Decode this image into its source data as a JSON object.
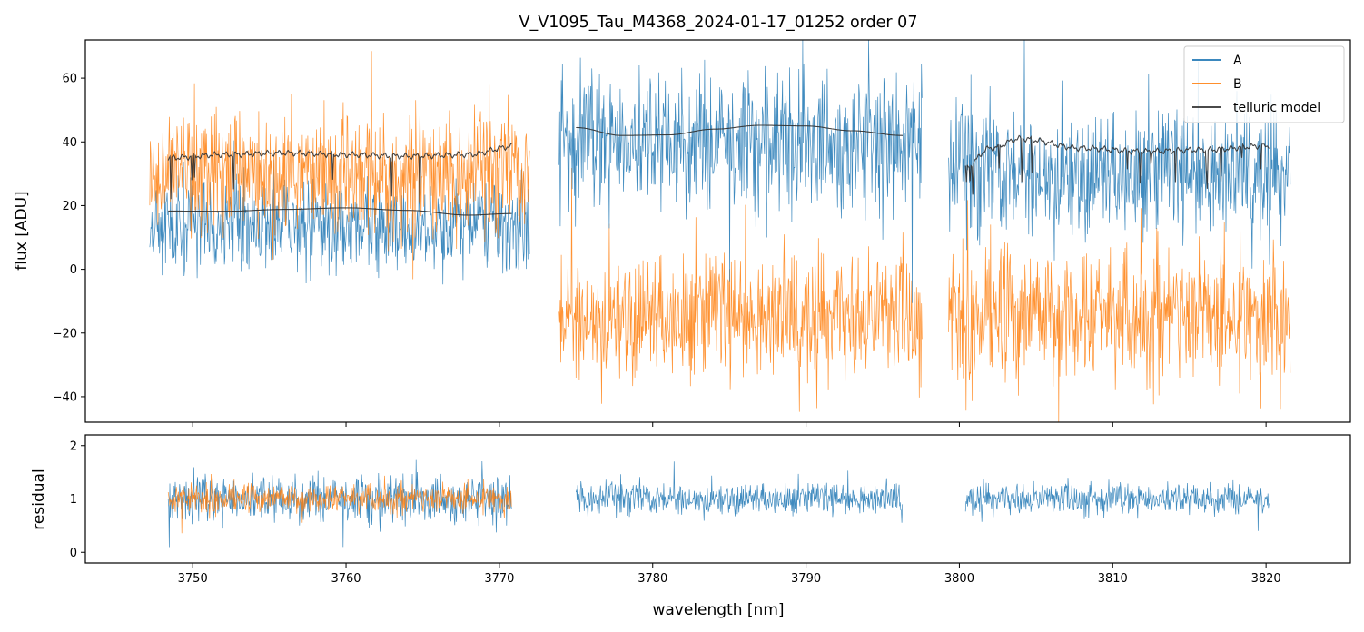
{
  "chart_data": [
    {
      "type": "line",
      "panel": "spectrum",
      "title": "V_V1095_Tau_M4368_2024-01-17_01252  order 07",
      "xlabel": "",
      "ylabel": "flux [ADU]",
      "xlim": [
        3743.0,
        3825.5
      ],
      "ylim": [
        -48,
        72
      ],
      "yticks": [
        -40,
        -20,
        0,
        20,
        40,
        60
      ],
      "ytick_labels": [
        "−40",
        "−20",
        "0",
        "20",
        "40",
        "60"
      ],
      "legend_position": "top-right",
      "series": [
        {
          "name": "A",
          "color": "#1f77b4",
          "segments": [
            {
              "x_start": 3747.2,
              "x_end": 3772.0,
              "center": 14,
              "noise": 14
            },
            {
              "x_start": 3773.9,
              "x_end": 3797.6,
              "center": 40,
              "noise": 22
            },
            {
              "x_start": 3799.3,
              "x_end": 3821.6,
              "center": 30,
              "noise": 20
            }
          ]
        },
        {
          "name": "B",
          "color": "#ff7f0e",
          "segments": [
            {
              "x_start": 3747.2,
              "x_end": 3772.0,
              "center": 30,
              "noise": 18
            },
            {
              "x_start": 3773.9,
              "x_end": 3797.6,
              "center": -15,
              "noise": 20
            },
            {
              "x_start": 3799.3,
              "x_end": 3821.6,
              "center": -15,
              "noise": 22
            }
          ]
        },
        {
          "name": "telluric model",
          "color": "#303030",
          "segments": [
            {
              "x": [
                3748.4,
                3752,
                3756,
                3760,
                3764,
                3768,
                3770.8
              ],
              "y": [
                35,
                36,
                36.5,
                36,
                35.5,
                36,
                38.5
              ]
            },
            {
              "x": [
                3748.4,
                3752,
                3756,
                3760,
                3764,
                3768,
                3770.8
              ],
              "y": [
                18.3,
                18.2,
                18.8,
                19.3,
                18.5,
                17,
                17.5
              ]
            },
            {
              "x": [
                3775.0,
                3778,
                3781,
                3784,
                3787,
                3790,
                3793,
                3796.3
              ],
              "y": [
                44.5,
                42,
                42.2,
                44,
                45.2,
                45,
                43.5,
                42
              ]
            },
            {
              "x": [
                3800.4,
                3802,
                3804,
                3808,
                3812,
                3816,
                3820.2
              ],
              "y": [
                32,
                38,
                41,
                38,
                37,
                37.5,
                38.8
              ]
            }
          ]
        }
      ]
    },
    {
      "type": "line",
      "panel": "residual",
      "title": "",
      "xlabel": "wavelength [nm]",
      "ylabel": "residual",
      "xlim": [
        3743.0,
        3825.5
      ],
      "ylim": [
        -0.2,
        2.2
      ],
      "yticks": [
        0,
        1,
        2
      ],
      "ytick_labels": [
        "0",
        "1",
        "2"
      ],
      "xticks": [
        3750,
        3760,
        3770,
        3780,
        3790,
        3800,
        3810,
        3820
      ],
      "xtick_labels": [
        "3750",
        "3760",
        "3770",
        "3780",
        "3790",
        "3800",
        "3810",
        "3820"
      ],
      "reference_line": 1,
      "series": [
        {
          "name": "A",
          "color": "#1f77b4",
          "segments": [
            {
              "x_start": 3748.4,
              "x_end": 3770.8,
              "center": 1.0,
              "noise": 0.45
            },
            {
              "x_start": 3775.0,
              "x_end": 3796.3,
              "center": 1.0,
              "noise": 0.3
            },
            {
              "x_start": 3800.4,
              "x_end": 3820.2,
              "center": 1.0,
              "noise": 0.3
            }
          ]
        },
        {
          "name": "B",
          "color": "#ff7f0e",
          "segments": [
            {
              "x_start": 3748.4,
              "x_end": 3770.8,
              "center": 1.0,
              "noise": 0.28
            }
          ]
        }
      ]
    }
  ],
  "legend": {
    "entries": [
      {
        "label": "A",
        "color": "#1f77b4"
      },
      {
        "label": "B",
        "color": "#ff7f0e"
      },
      {
        "label": "telluric model",
        "color": "#303030"
      }
    ]
  }
}
